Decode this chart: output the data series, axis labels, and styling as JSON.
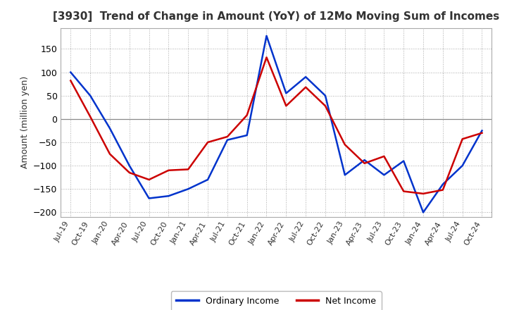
{
  "title": "[3930]  Trend of Change in Amount (YoY) of 12Mo Moving Sum of Incomes",
  "ylabel": "Amount (million yen)",
  "ylim": [
    -210,
    195
  ],
  "yticks": [
    -200,
    -150,
    -100,
    -50,
    0,
    50,
    100,
    150
  ],
  "background_color": "#ffffff",
  "grid_color": "#aaaaaa",
  "ordinary_income_color": "#0033cc",
  "net_income_color": "#cc0000",
  "labels": [
    "Ordinary Income",
    "Net Income"
  ],
  "x_labels": [
    "Jul-19",
    "Oct-19",
    "Jan-20",
    "Apr-20",
    "Jul-20",
    "Oct-20",
    "Jan-21",
    "Apr-21",
    "Jul-21",
    "Oct-21",
    "Jan-22",
    "Apr-22",
    "Jul-22",
    "Oct-22",
    "Jan-23",
    "Apr-23",
    "Jul-23",
    "Oct-23",
    "Jan-24",
    "Apr-24",
    "Jul-24",
    "Oct-24"
  ],
  "ordinary_income": [
    100,
    50,
    -20,
    -100,
    -170,
    -165,
    -150,
    -130,
    -45,
    -35,
    178,
    55,
    90,
    50,
    -120,
    -88,
    -120,
    -90,
    -200,
    -140,
    -100,
    -25
  ],
  "net_income": [
    82,
    5,
    -75,
    -115,
    -130,
    -110,
    -108,
    -50,
    -38,
    8,
    132,
    28,
    68,
    28,
    -55,
    -95,
    -80,
    -155,
    -160,
    -152,
    -43,
    -30
  ]
}
